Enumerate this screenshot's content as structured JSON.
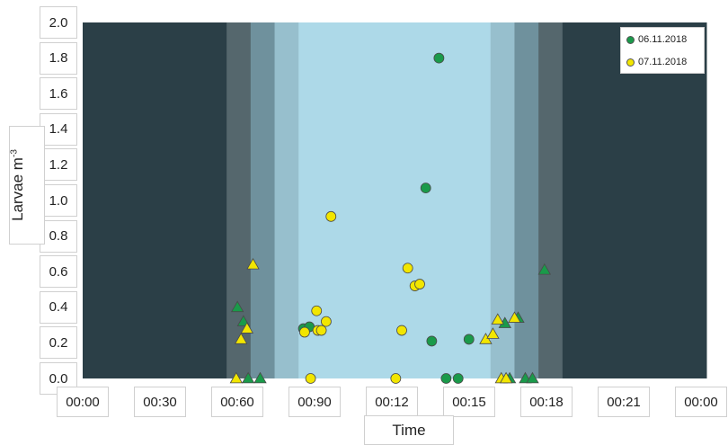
{
  "chart_data": {
    "type": "scatter",
    "ylabel": "Larvae m",
    "ylabel_sup": "-3",
    "xlabel": "Time",
    "ylim": [
      0,
      2.0
    ],
    "yticks": [
      "0.0",
      "0.2",
      "0.4",
      "0.6",
      "0.8",
      "1.0",
      "1.2",
      "1.4",
      "1.6",
      "1.8",
      "2.0"
    ],
    "xticks": [
      "00:00",
      "00:30",
      "00:60",
      "00:90",
      "00:12",
      "00:15",
      "00:18",
      "00:21",
      "00:00"
    ],
    "legend_position": "top-right",
    "series": [
      {
        "name": "06.11.2018",
        "color": "#1a9a4a",
        "points": [
          {
            "x": 6.45,
            "y": 0.4,
            "marker": "triangle"
          },
          {
            "x": 6.7,
            "y": 0.32,
            "marker": "triangle"
          },
          {
            "x": 6.9,
            "y": 0.0,
            "marker": "triangle"
          },
          {
            "x": 7.4,
            "y": 0.0,
            "marker": "triangle"
          },
          {
            "x": 9.2,
            "y": 0.28,
            "marker": "circle"
          },
          {
            "x": 9.45,
            "y": 0.29,
            "marker": "circle"
          },
          {
            "x": 14.3,
            "y": 1.07,
            "marker": "circle"
          },
          {
            "x": 14.55,
            "y": 0.21,
            "marker": "circle"
          },
          {
            "x": 14.85,
            "y": 1.8,
            "marker": "circle"
          },
          {
            "x": 15.15,
            "y": 0.0,
            "marker": "circle"
          },
          {
            "x": 15.65,
            "y": 0.0,
            "marker": "circle"
          },
          {
            "x": 16.1,
            "y": 0.22,
            "marker": "circle"
          },
          {
            "x": 17.6,
            "y": 0.31,
            "marker": "triangle"
          },
          {
            "x": 17.8,
            "y": 0.0,
            "marker": "triangle"
          },
          {
            "x": 18.15,
            "y": 0.34,
            "marker": "triangle"
          },
          {
            "x": 18.45,
            "y": 0.0,
            "marker": "triangle"
          },
          {
            "x": 18.75,
            "y": 0.0,
            "marker": "triangle"
          },
          {
            "x": 19.25,
            "y": 0.61,
            "marker": "triangle"
          }
        ]
      },
      {
        "name": "07.11.2018",
        "color": "#f2e600",
        "points": [
          {
            "x": 6.4,
            "y": 0.0,
            "marker": "triangle"
          },
          {
            "x": 6.6,
            "y": 0.22,
            "marker": "triangle"
          },
          {
            "x": 6.85,
            "y": 0.28,
            "marker": "triangle"
          },
          {
            "x": 7.1,
            "y": 0.64,
            "marker": "triangle"
          },
          {
            "x": 9.25,
            "y": 0.26,
            "marker": "circle"
          },
          {
            "x": 9.5,
            "y": 0.0,
            "marker": "circle"
          },
          {
            "x": 9.75,
            "y": 0.38,
            "marker": "circle"
          },
          {
            "x": 9.8,
            "y": 0.27,
            "marker": "circle"
          },
          {
            "x": 9.95,
            "y": 0.27,
            "marker": "circle"
          },
          {
            "x": 10.15,
            "y": 0.32,
            "marker": "circle"
          },
          {
            "x": 10.35,
            "y": 0.91,
            "marker": "circle"
          },
          {
            "x": 13.05,
            "y": 0.0,
            "marker": "circle"
          },
          {
            "x": 13.3,
            "y": 0.27,
            "marker": "circle"
          },
          {
            "x": 13.55,
            "y": 0.62,
            "marker": "circle"
          },
          {
            "x": 13.85,
            "y": 0.52,
            "marker": "circle"
          },
          {
            "x": 14.05,
            "y": 0.53,
            "marker": "circle"
          },
          {
            "x": 16.8,
            "y": 0.22,
            "marker": "triangle"
          },
          {
            "x": 17.1,
            "y": 0.25,
            "marker": "triangle"
          },
          {
            "x": 17.3,
            "y": 0.33,
            "marker": "triangle"
          },
          {
            "x": 17.45,
            "y": 0.0,
            "marker": "triangle"
          },
          {
            "x": 17.65,
            "y": 0.0,
            "marker": "triangle"
          },
          {
            "x": 18.0,
            "y": 0.34,
            "marker": "triangle"
          }
        ]
      }
    ],
    "light_bands": [
      {
        "from": 0,
        "to": 6.0,
        "color": "#2b3f47"
      },
      {
        "from": 6.0,
        "to": 7.0,
        "color": "#55676d"
      },
      {
        "from": 7.0,
        "to": 8.0,
        "color": "#6f919d"
      },
      {
        "from": 8.0,
        "to": 9.0,
        "color": "#97bfcd"
      },
      {
        "from": 9.0,
        "to": 17.0,
        "color": "#add9e8"
      },
      {
        "from": 17.0,
        "to": 18.0,
        "color": "#97bfcd"
      },
      {
        "from": 18.0,
        "to": 19.0,
        "color": "#6f919d"
      },
      {
        "from": 19.0,
        "to": 20.0,
        "color": "#55676d"
      },
      {
        "from": 20.0,
        "to": 26.0,
        "color": "#2b3f47"
      }
    ]
  }
}
